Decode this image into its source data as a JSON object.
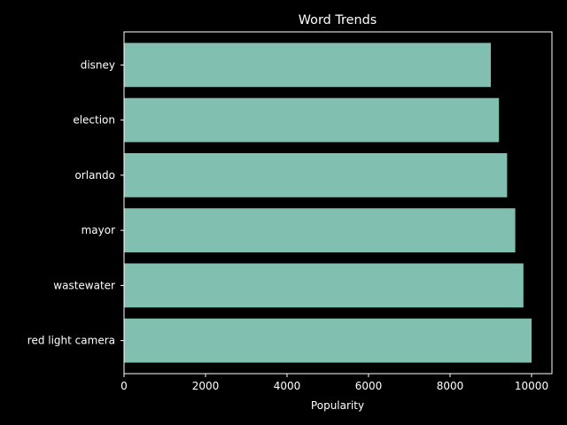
{
  "chart_data": {
    "type": "bar",
    "orientation": "horizontal",
    "title": "Word Trends",
    "xlabel": "Popularity",
    "ylabel": "",
    "categories": [
      "red light camera",
      "wastewater",
      "mayor",
      "orlando",
      "election",
      "disney"
    ],
    "values": [
      10000,
      9800,
      9600,
      9400,
      9200,
      9000
    ],
    "xlim": [
      0,
      10500
    ],
    "x_ticks": [
      0,
      2000,
      4000,
      6000,
      8000,
      10000
    ],
    "grid": false,
    "legend": "none",
    "colors": {
      "background": "#000000",
      "bar": "#81bfb1",
      "axis": "#ffffff",
      "text": "#ffffff"
    }
  }
}
